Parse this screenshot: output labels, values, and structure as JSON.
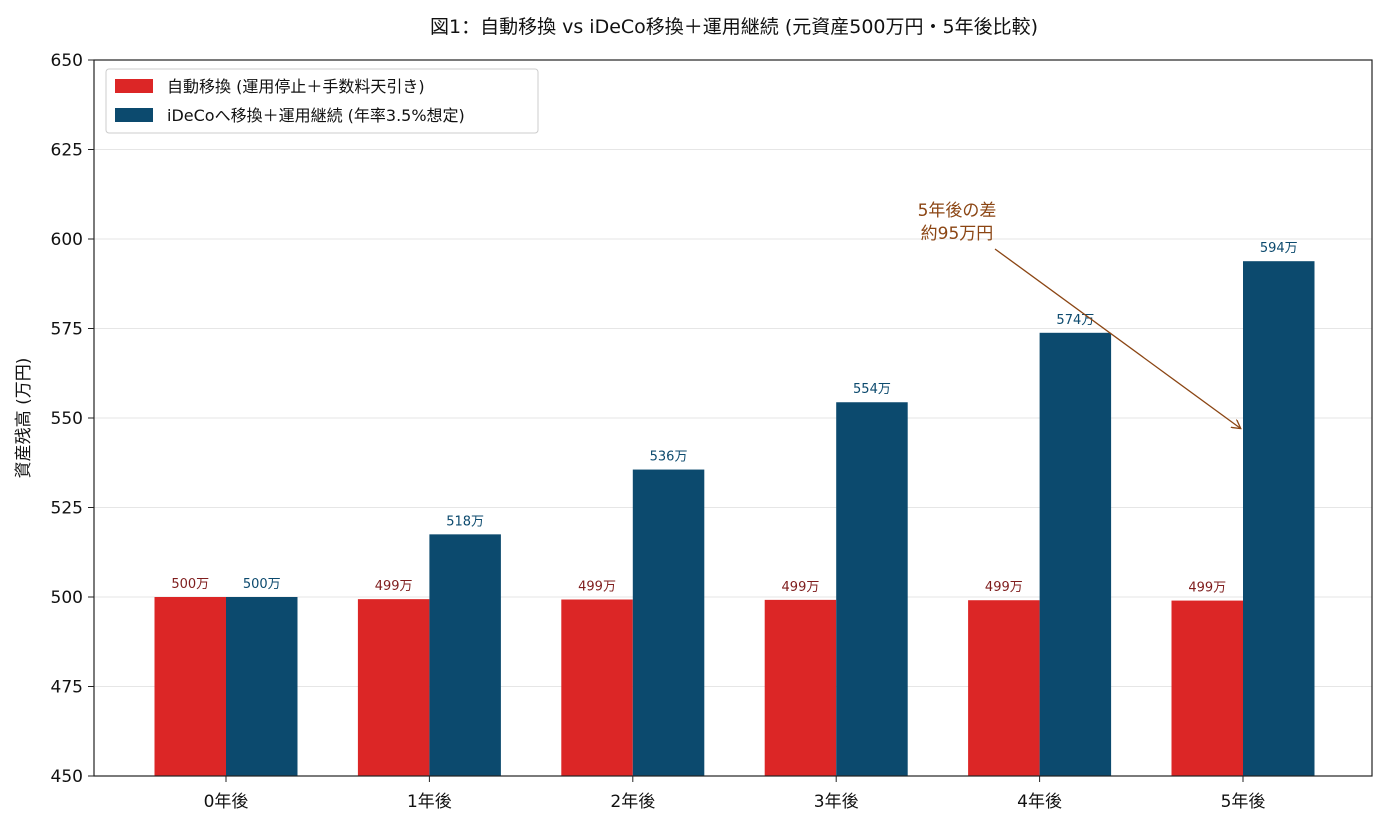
{
  "chart_data": {
    "type": "bar",
    "title": "図1：自動移換 vs iDeCo移換＋運用継続 (元資産500万円・5年後比較)",
    "xlabel": "",
    "ylabel": "資産残高 (万円)",
    "ylim": [
      450,
      650
    ],
    "yticks": [
      450,
      475,
      500,
      525,
      550,
      575,
      600,
      625,
      650
    ],
    "grid": "horizontal",
    "legend_position": "top-left",
    "categories": [
      "0年後",
      "1年後",
      "2年後",
      "3年後",
      "4年後",
      "5年後"
    ],
    "series": [
      {
        "name": "自動移換 (運用停止＋手数料天引き)",
        "color": "#dc2626",
        "label_color": "#7f1d1d",
        "values": [
          500,
          499.4,
          499.3,
          499.2,
          499.1,
          499.0
        ],
        "labels": [
          "500万",
          "499万",
          "499万",
          "499万",
          "499万",
          "499万"
        ]
      },
      {
        "name": "iDeCoへ移換＋運用継続 (年率3.5%想定)",
        "color": "#0c4a6e",
        "label_color": "#0c4a6e",
        "values": [
          500,
          517.5,
          535.6,
          554.4,
          573.8,
          593.8
        ],
        "labels": [
          "500万",
          "518万",
          "536万",
          "554万",
          "574万",
          "594万"
        ]
      }
    ],
    "annotation": {
      "lines": [
        "5年後の差",
        "約95万円"
      ],
      "color": "#8b4513"
    }
  }
}
